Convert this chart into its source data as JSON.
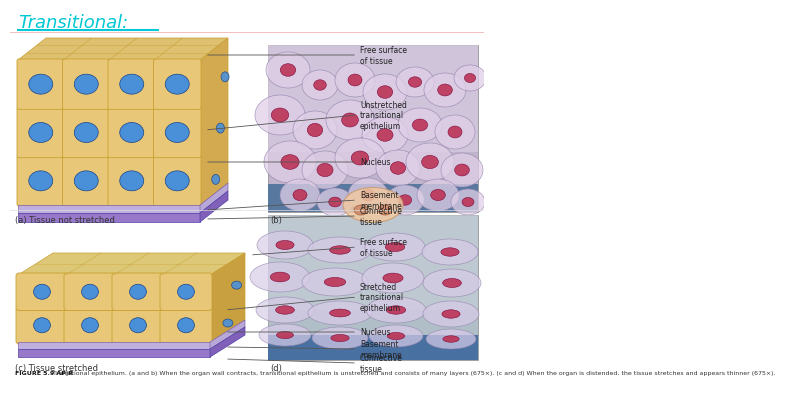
{
  "title": "Transitional:",
  "title_color": "#00c8d4",
  "bg_color": "#ffffff",
  "figure_caption_bold": "FIGURE 5.9 AP|R",
  "figure_caption": "  Transitional epithelium. (a and b) When the organ wall contracts, transitional epithelium is unstretched and consists of many layers (675×). (c and d) When the organ is distended, the tissue stretches and appears thinner (675×).",
  "label_a": "(a) Tissue not stretched",
  "label_b": "(b)",
  "label_c": "(c) Tissue stretched",
  "label_d": "(d)",
  "top_labels": [
    "Free surface\nof tissue",
    "Unstretched\ntransitional\nepithelium",
    "Nucleus",
    "Basement\nmembrane",
    "Connective\ntissue"
  ],
  "bottom_labels": [
    "Free surface\nof tissue",
    "Stretched\ntransitional\nepithelium",
    "Nucleus",
    "Basement\nmembrane",
    "Connective\ntissue"
  ],
  "cell_body_color": "#e8c878",
  "cell_outline_color": "#c8a030",
  "cell_inner_color": "#f5e0a0",
  "nucleus_color": "#4a90d9",
  "nucleus_outline": "#1a4488",
  "basement_color": "#c0b0e0",
  "connective_color": "#9878c8",
  "side_cell_color": "#d4aa50",
  "top_cell_color": "#ddc070",
  "micro_bg_top": "#c8bcd0",
  "micro_bg_bot": "#a8b8c8",
  "micro_cell_fill": "#e0d0e8",
  "micro_nucleus": "#aa3355",
  "nose_color": "#f4c4a0"
}
